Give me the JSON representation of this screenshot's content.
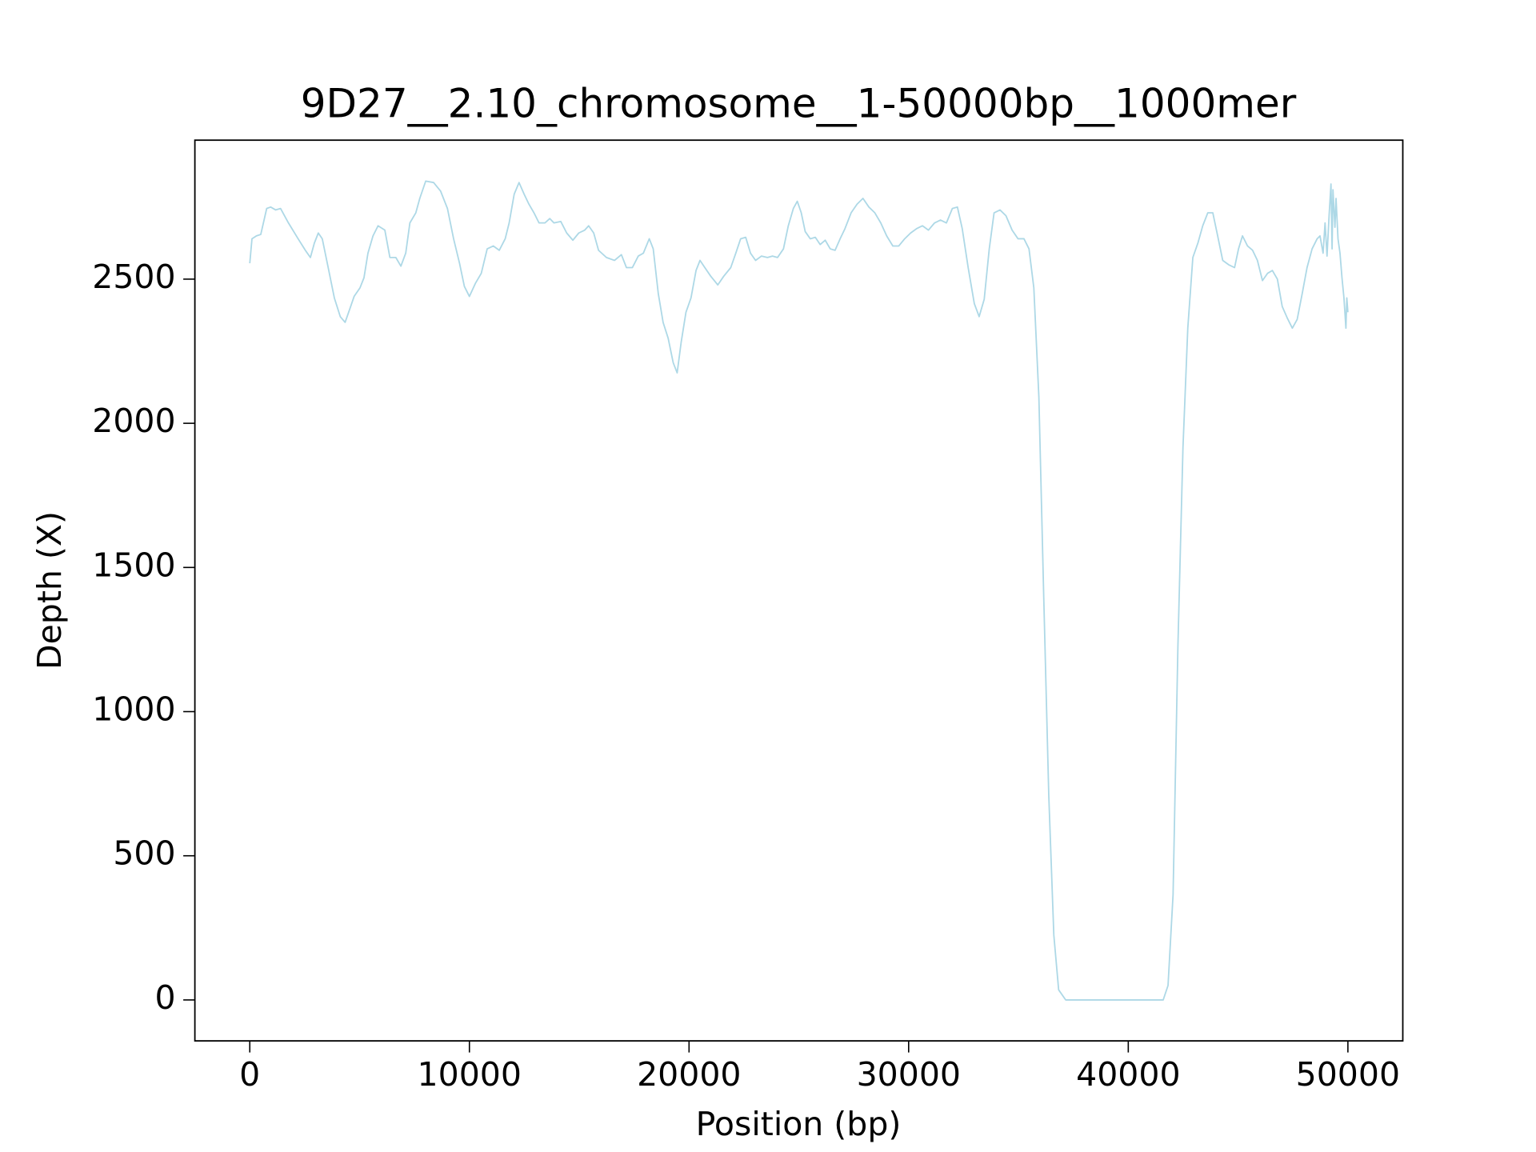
{
  "chart_data": {
    "type": "line",
    "title": "9D27__2.10_chromosome__1-50000bp__1000mer",
    "xlabel": "Position (bp)",
    "ylabel": "Depth (X)",
    "color": "#add8e6",
    "x": [
      0,
      100,
      300,
      500,
      770,
      950,
      1180,
      1400,
      1760,
      2200,
      2530,
      2760,
      2940,
      3120,
      3300,
      3570,
      3850,
      4120,
      4340,
      4570,
      4750,
      5020,
      5200,
      5380,
      5610,
      5840,
      6150,
      6380,
      6650,
      6880,
      7100,
      7290,
      7560,
      7740,
      8010,
      8370,
      8690,
      9000,
      9280,
      9550,
      9770,
      10000,
      10270,
      10540,
      10810,
      11090,
      11360,
      11630,
      11810,
      12040,
      12260,
      12490,
      12710,
      12940,
      13170,
      13440,
      13660,
      13850,
      14160,
      14430,
      14710,
      14980,
      15250,
      15430,
      15660,
      15880,
      16240,
      16610,
      16920,
      17150,
      17420,
      17690,
      17920,
      18190,
      18370,
      18600,
      18820,
      19050,
      19280,
      19460,
      19640,
      19860,
      20090,
      20320,
      20500,
      20720,
      20990,
      21310,
      21580,
      21900,
      22130,
      22350,
      22580,
      22800,
      23030,
      23300,
      23570,
      23800,
      24030,
      24300,
      24520,
      24750,
      24930,
      25110,
      25290,
      25520,
      25750,
      25970,
      26200,
      26430,
      26650,
      26880,
      27100,
      27380,
      27650,
      27920,
      28190,
      28460,
      28730,
      29000,
      29280,
      29550,
      29820,
      30090,
      30360,
      30630,
      30900,
      31180,
      31450,
      31720,
      31990,
      32220,
      32440,
      32710,
      32990,
      33210,
      33440,
      33670,
      33890,
      34160,
      34430,
      34710,
      34980,
      35250,
      35480,
      35700,
      35930,
      36150,
      36380,
      36610,
      36830,
      37150,
      38420,
      40680,
      41590,
      41810,
      42040,
      42260,
      42490,
      42710,
      42940,
      43170,
      43390,
      43620,
      43850,
      44070,
      44300,
      44570,
      44840,
      45020,
      45200,
      45430,
      45660,
      45880,
      46110,
      46340,
      46560,
      46790,
      47010,
      47240,
      47470,
      47690,
      47920,
      48140,
      48370,
      48600,
      48730,
      48870,
      48960,
      49050,
      49140,
      49230,
      49280,
      49320,
      49410,
      49460,
      49550,
      49640,
      49730,
      49820,
      49910,
      49950,
      50000
    ],
    "values": [
      2555,
      2640,
      2650,
      2655,
      2745,
      2750,
      2740,
      2745,
      2695,
      2640,
      2600,
      2575,
      2625,
      2660,
      2640,
      2540,
      2435,
      2370,
      2350,
      2400,
      2440,
      2470,
      2505,
      2590,
      2650,
      2685,
      2670,
      2575,
      2575,
      2545,
      2590,
      2695,
      2730,
      2780,
      2840,
      2835,
      2805,
      2745,
      2640,
      2555,
      2475,
      2440,
      2485,
      2520,
      2605,
      2615,
      2600,
      2640,
      2695,
      2795,
      2835,
      2795,
      2760,
      2730,
      2695,
      2695,
      2710,
      2695,
      2700,
      2660,
      2635,
      2660,
      2670,
      2685,
      2660,
      2600,
      2575,
      2565,
      2585,
      2540,
      2540,
      2580,
      2590,
      2640,
      2605,
      2450,
      2350,
      2295,
      2210,
      2175,
      2280,
      2385,
      2435,
      2530,
      2565,
      2540,
      2510,
      2480,
      2510,
      2540,
      2590,
      2640,
      2645,
      2590,
      2565,
      2580,
      2575,
      2580,
      2575,
      2605,
      2685,
      2745,
      2770,
      2730,
      2665,
      2640,
      2645,
      2620,
      2635,
      2605,
      2600,
      2640,
      2675,
      2730,
      2760,
      2780,
      2750,
      2730,
      2695,
      2650,
      2615,
      2615,
      2640,
      2660,
      2675,
      2685,
      2670,
      2695,
      2705,
      2695,
      2745,
      2750,
      2675,
      2540,
      2415,
      2370,
      2430,
      2605,
      2730,
      2740,
      2720,
      2670,
      2640,
      2640,
      2605,
      2470,
      2090,
      1400,
      710,
      225,
      35,
      0,
      0,
      0,
      0,
      50,
      365,
      1225,
      1915,
      2330,
      2575,
      2625,
      2685,
      2730,
      2730,
      2650,
      2565,
      2550,
      2540,
      2605,
      2650,
      2615,
      2600,
      2565,
      2495,
      2520,
      2530,
      2500,
      2405,
      2365,
      2330,
      2360,
      2450,
      2540,
      2605,
      2640,
      2650,
      2590,
      2695,
      2580,
      2715,
      2830,
      2605,
      2810,
      2680,
      2780,
      2640,
      2590,
      2505,
      2435,
      2330,
      2435,
      2385
    ],
    "xlim": [
      -2500,
      52500
    ],
    "ylim": [
      -142,
      2982
    ],
    "xticks": [
      0,
      10000,
      20000,
      30000,
      40000,
      50000
    ],
    "yticks": [
      0,
      500,
      1000,
      1500,
      2000,
      2500
    ]
  }
}
